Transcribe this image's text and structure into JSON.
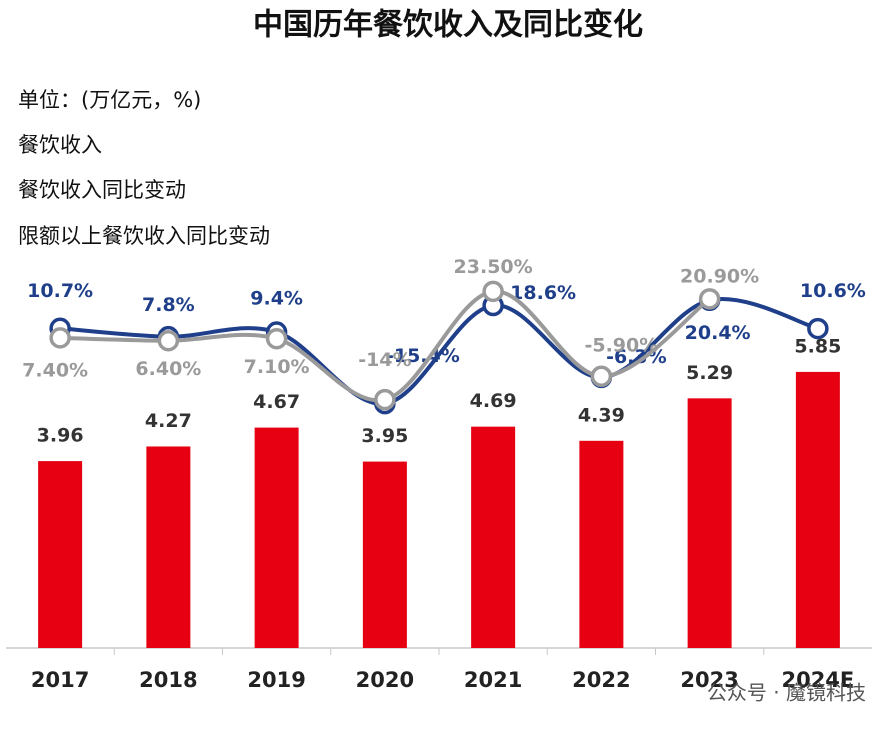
{
  "chart_data": {
    "type": "bar-line",
    "title": "中国历年餐饮收入及同比变化",
    "unit_label": "单位：(万亿元，%)",
    "legend_labels": [
      "餐饮收入",
      "餐饮收入同比变动",
      "限额以上餐饮收入同比变动"
    ],
    "categories": [
      "2017",
      "2018",
      "2019",
      "2020",
      "2021",
      "2022",
      "2023",
      "2024E"
    ],
    "ylim": [
      0,
      8.2
    ],
    "y2lim": [
      -100,
      34
    ],
    "series": [
      {
        "name": "餐饮收入",
        "type": "bar",
        "color": "#e60012",
        "values": [
          3.96,
          4.27,
          4.67,
          3.95,
          4.69,
          4.39,
          5.29,
          5.85
        ]
      },
      {
        "name": "餐饮收入同比变动",
        "type": "line",
        "axis": "y2",
        "color": "#1f3f8a",
        "values": [
          10.7,
          7.8,
          9.4,
          -15.4,
          18.6,
          -6.3,
          20.4,
          10.6
        ],
        "value_labels": [
          "10.7%",
          "7.8%",
          "9.4%",
          "-15.4%",
          "18.6%",
          "-6.3%",
          "20.4%",
          "10.6%"
        ]
      },
      {
        "name": "限额以上餐饮收入同比变动",
        "type": "line",
        "axis": "y2",
        "color": "#9a9a9a",
        "values": [
          7.4,
          6.4,
          7.1,
          -14,
          23.5,
          -5.9,
          20.9,
          null
        ],
        "value_labels": [
          "7.40%",
          "6.40%",
          "7.10%",
          "-14%",
          "23.50%",
          "-5.90%",
          "20.90%",
          null
        ]
      }
    ],
    "watermark": "公众号 · 魔镜科技"
  }
}
